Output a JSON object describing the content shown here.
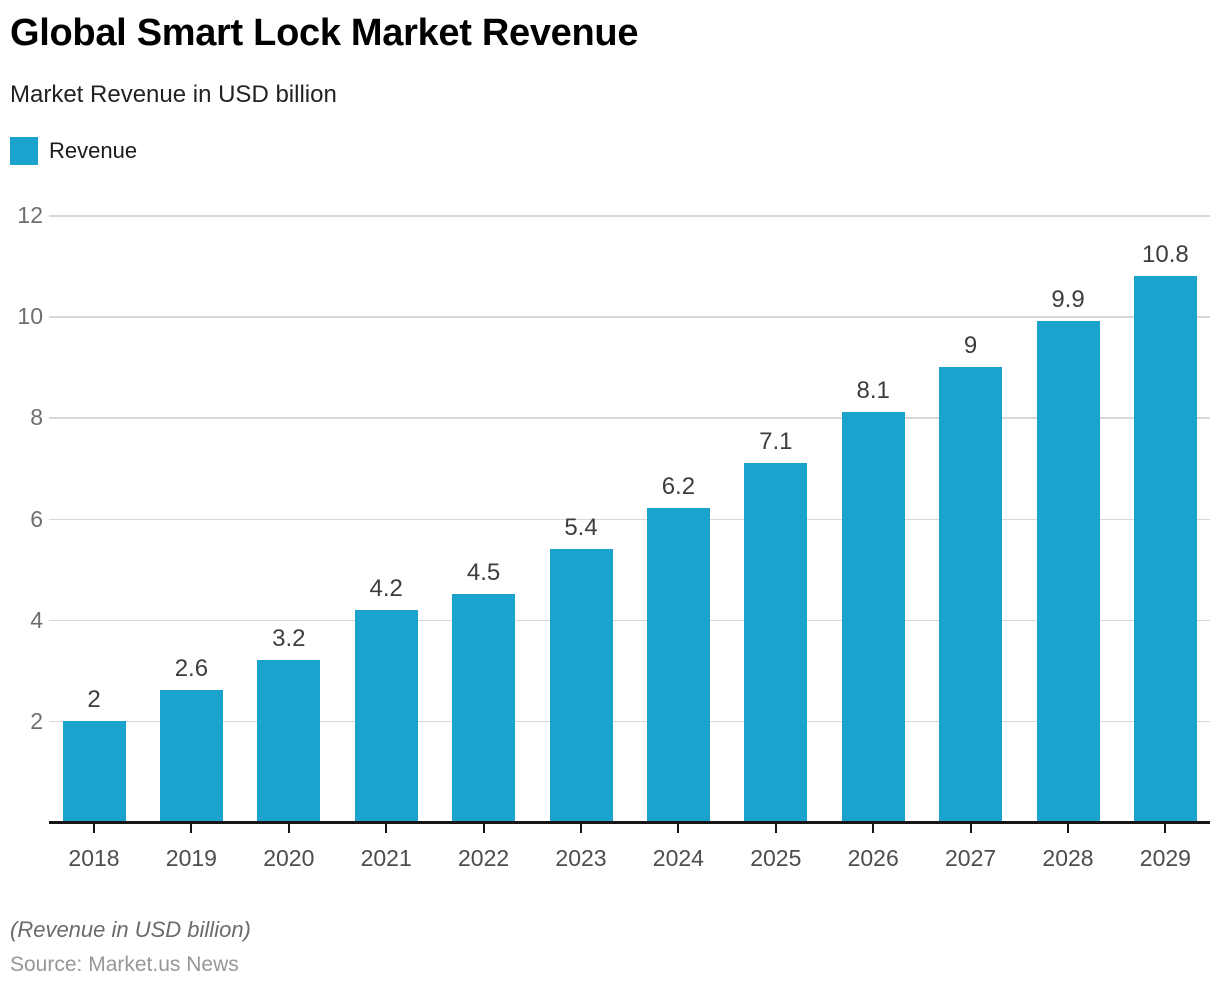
{
  "header": {
    "title": "Global Smart Lock Market Revenue",
    "subtitle": "Market Revenue in USD billion"
  },
  "legend": {
    "items": [
      {
        "label": "Revenue",
        "color": "#1ba3ce"
      }
    ]
  },
  "chart_data": {
    "type": "bar",
    "title": "Global Smart Lock Market Revenue",
    "subtitle": "Market Revenue in USD billion",
    "categories": [
      "2018",
      "2019",
      "2020",
      "2021",
      "2022",
      "2023",
      "2024",
      "2025",
      "2026",
      "2027",
      "2028",
      "2029"
    ],
    "series": [
      {
        "name": "Revenue",
        "values": [
          2,
          2.6,
          3.2,
          4.2,
          4.5,
          5.4,
          6.2,
          7.1,
          8.1,
          9,
          9.9,
          10.8
        ]
      }
    ],
    "value_labels": [
      "2",
      "2.6",
      "3.2",
      "4.2",
      "4.5",
      "5.4",
      "6.2",
      "7.1",
      "8.1",
      "9",
      "9.9",
      "10.8"
    ],
    "xlabel": "",
    "ylabel": "",
    "ylim": [
      0,
      12
    ],
    "yticks": [
      2,
      4,
      6,
      8,
      10,
      12
    ],
    "grid": "horizontal",
    "legend_position": "top-left",
    "bar_color": "#1ba3ce"
  },
  "footer": {
    "note": "(Revenue in USD billion)",
    "source": "Source: Market.us News"
  },
  "colors": {
    "bar": "#1ba3ce",
    "grid": "#d8d8d8",
    "axis": "#161616",
    "y_tick_label": "#6f6f6f",
    "x_tick_label": "#4d4d4d",
    "value_label": "#3d3d3d",
    "title": "#000000",
    "subtitle": "#222222",
    "footnote": "#6b6b6b",
    "source": "#979797"
  }
}
